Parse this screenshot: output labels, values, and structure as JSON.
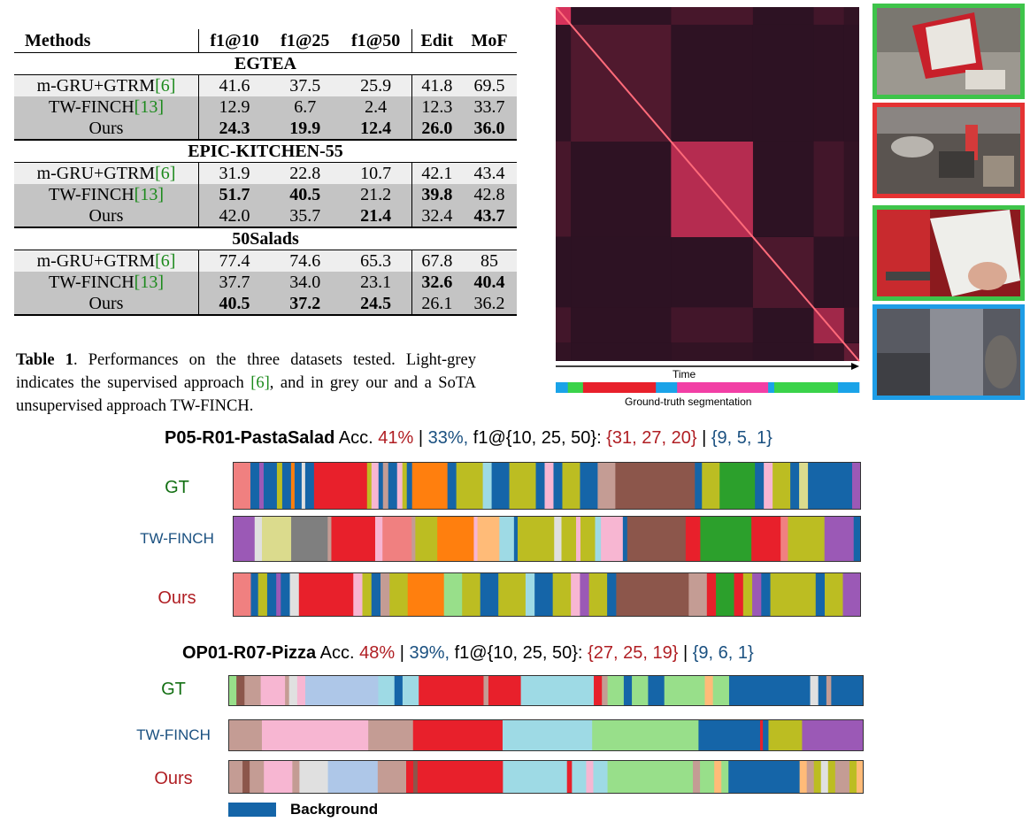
{
  "table": {
    "headers": [
      "Methods",
      "f1@10",
      "f1@25",
      "f1@50",
      "Edit",
      "MoF"
    ],
    "sections": [
      {
        "name": "EGTEA",
        "rows": [
          {
            "method": "m-GRU+GTRM",
            "ref": "[6]",
            "values": [
              "41.6",
              "37.5",
              "25.9",
              "41.8",
              "69.5"
            ],
            "bold": [
              false,
              false,
              false,
              false,
              false
            ],
            "shade": "light"
          },
          {
            "method": "TW-FINCH",
            "ref": "[13]",
            "values": [
              "12.9",
              "6.7",
              "2.4",
              "12.3",
              "33.7"
            ],
            "bold": [
              false,
              false,
              false,
              false,
              false
            ],
            "shade": "grey"
          },
          {
            "method": "Ours",
            "ref": "",
            "values": [
              "24.3",
              "19.9",
              "12.4",
              "26.0",
              "36.0"
            ],
            "bold": [
              true,
              true,
              true,
              true,
              true
            ],
            "shade": "grey"
          }
        ]
      },
      {
        "name": "EPIC-KITCHEN-55",
        "rows": [
          {
            "method": "m-GRU+GTRM",
            "ref": "[6]",
            "values": [
              "31.9",
              "22.8",
              "10.7",
              "42.1",
              "43.4"
            ],
            "bold": [
              false,
              false,
              false,
              false,
              false
            ],
            "shade": "light"
          },
          {
            "method": "TW-FINCH",
            "ref": "[13]",
            "values": [
              "51.7",
              "40.5",
              "21.2",
              "39.8",
              "42.8"
            ],
            "bold": [
              true,
              true,
              false,
              true,
              false
            ],
            "shade": "grey"
          },
          {
            "method": "Ours",
            "ref": "",
            "values": [
              "42.0",
              "35.7",
              "21.4",
              "32.4",
              "43.7"
            ],
            "bold": [
              false,
              false,
              true,
              false,
              true
            ],
            "shade": "grey"
          }
        ]
      },
      {
        "name": "50Salads",
        "rows": [
          {
            "method": "m-GRU+GTRM",
            "ref": "[6]",
            "values": [
              "77.4",
              "74.6",
              "65.3",
              "67.8",
              "85"
            ],
            "bold": [
              false,
              false,
              false,
              false,
              false
            ],
            "shade": "light"
          },
          {
            "method": "TW-FINCH",
            "ref": "[13]",
            "values": [
              "37.7",
              "34.0",
              "23.1",
              "32.6",
              "40.4"
            ],
            "bold": [
              false,
              false,
              false,
              true,
              true
            ],
            "shade": "grey"
          },
          {
            "method": "Ours",
            "ref": "",
            "values": [
              "40.5",
              "37.2",
              "24.5",
              "26.1",
              "36.2"
            ],
            "bold": [
              true,
              true,
              true,
              false,
              false
            ],
            "shade": "grey"
          }
        ]
      }
    ]
  },
  "caption": {
    "label": "Table 1",
    "text_before_ref": ". Performances on the three datasets tested. Light-grey indicates the supervised approach ",
    "ref": "[6]",
    "text_after_ref": ", and in grey our and a SoTA unsupervised approach TW-FINCH."
  },
  "heatmap": {
    "time_label": "Time",
    "gt_label": "Ground-truth segmentation",
    "blocks": [
      {
        "start": 0.0,
        "end": 0.05,
        "intensity": 0.85
      },
      {
        "start": 0.05,
        "end": 0.38,
        "intensity": 0.22
      },
      {
        "start": 0.38,
        "end": 0.65,
        "intensity": 0.7
      },
      {
        "start": 0.65,
        "end": 0.85,
        "intensity": 0.2
      },
      {
        "start": 0.85,
        "end": 0.95,
        "intensity": 0.6
      },
      {
        "start": 0.95,
        "end": 1.0,
        "intensity": 0.3
      }
    ],
    "gt_segments": [
      {
        "fraction": 0.04,
        "color": "#1aa3e8"
      },
      {
        "fraction": 0.05,
        "color": "#3ad34a"
      },
      {
        "fraction": 0.24,
        "color": "#e8202b"
      },
      {
        "fraction": 0.07,
        "color": "#1aa3e8"
      },
      {
        "fraction": 0.3,
        "color": "#f23fa5"
      },
      {
        "fraction": 0.02,
        "color": "#1aa3e8"
      },
      {
        "fraction": 0.21,
        "color": "#3ad34a"
      },
      {
        "fraction": 0.07,
        "color": "#1aa3e8"
      }
    ]
  },
  "thumbnails": [
    {
      "name": "binder",
      "border": "#3ec44a"
    },
    {
      "name": "kitchen-sink",
      "border": "#e53333"
    },
    {
      "name": "reading-paper",
      "border": "#3ec44a"
    },
    {
      "name": "blurry-scene",
      "border": "#1e9de6"
    }
  ],
  "examples": [
    {
      "name": "P05-R01-PastaSalad",
      "acc_label": "Acc.",
      "acc_ours": "41%",
      "sep": "|",
      "acc_tw": "33%,",
      "f1_label": "f1@{10, 25, 50}:",
      "f1_ours": "{31, 27, 20}",
      "sep2": "|",
      "f1_tw": "{9, 5, 1}",
      "rows": [
        {
          "label": "GT",
          "segments": [
            [
              "#f08080",
              2
            ],
            [
              "#1565a8",
              1
            ],
            [
              "#9b59b6",
              0.5
            ],
            [
              "#1565a8",
              1.5
            ],
            [
              "#bcbd22",
              0.6
            ],
            [
              "#1565a8",
              1
            ],
            [
              "#ff7f0e",
              0.4
            ],
            [
              "#1565a8",
              0.8
            ],
            [
              "#e0e0e0",
              0.4
            ],
            [
              "#1565a8",
              1
            ],
            [
              "#e8202b",
              6
            ],
            [
              "#bcbd22",
              0.5
            ],
            [
              "#f7b6d2",
              0.8
            ],
            [
              "#1565a8",
              0.5
            ],
            [
              "#c49c94",
              0.6
            ],
            [
              "#1565a8",
              1
            ],
            [
              "#f7b6d2",
              0.6
            ],
            [
              "#bcbd22",
              0.5
            ],
            [
              "#1565a8",
              0.6
            ],
            [
              "#ff7f0e",
              4
            ],
            [
              "#1565a8",
              1
            ],
            [
              "#bcbd22",
              3
            ],
            [
              "#9edae5",
              1
            ],
            [
              "#1565a8",
              2
            ],
            [
              "#bcbd22",
              3
            ],
            [
              "#1565a8",
              1
            ],
            [
              "#f7b6d2",
              1
            ],
            [
              "#1565a8",
              1
            ],
            [
              "#bcbd22",
              2
            ],
            [
              "#1565a8",
              2
            ],
            [
              "#c49c94",
              2
            ],
            [
              "#8c564b",
              9
            ],
            [
              "#1565a8",
              0.8
            ],
            [
              "#bcbd22",
              2
            ],
            [
              "#2ca02c",
              4
            ],
            [
              "#1565a8",
              1
            ],
            [
              "#f7b6d2",
              1
            ],
            [
              "#bcbd22",
              2
            ],
            [
              "#1565a8",
              1
            ],
            [
              "#dbdb8d",
              1
            ],
            [
              "#1565a8",
              5
            ],
            [
              "#9b59b6",
              1
            ]
          ]
        },
        {
          "label": "TW-FINCH",
          "segments": [
            [
              "#9b59b6",
              3
            ],
            [
              "#e0e0e0",
              1
            ],
            [
              "#dbdb8d",
              4
            ],
            [
              "#7f7f7f",
              5
            ],
            [
              "#c49c94",
              0.5
            ],
            [
              "#e8202b",
              6
            ],
            [
              "#f7b6d2",
              1
            ],
            [
              "#f08080",
              4
            ],
            [
              "#c49c94",
              0.5
            ],
            [
              "#bcbd22",
              3
            ],
            [
              "#ff7f0e",
              5
            ],
            [
              "#f7b6d2",
              0.5
            ],
            [
              "#ffbb78",
              3
            ],
            [
              "#9edae5",
              2
            ],
            [
              "#1565a8",
              0.5
            ],
            [
              "#bcbd22",
              5
            ],
            [
              "#e0e0e0",
              1
            ],
            [
              "#bcbd22",
              2
            ],
            [
              "#f7b6d2",
              0.6
            ],
            [
              "#bcbd22",
              2
            ],
            [
              "#9edae5",
              0.8
            ],
            [
              "#f7b6d2",
              3
            ],
            [
              "#1565a8",
              0.6
            ],
            [
              "#8c564b",
              8
            ],
            [
              "#e8202b",
              2
            ],
            [
              "#2ca02c",
              7
            ],
            [
              "#e8202b",
              4
            ],
            [
              "#f08080",
              1
            ],
            [
              "#bcbd22",
              5
            ],
            [
              "#9b59b6",
              4
            ],
            [
              "#1565a8",
              1
            ]
          ]
        },
        {
          "label": "Ours",
          "segments": [
            [
              "#f08080",
              2
            ],
            [
              "#1565a8",
              0.8
            ],
            [
              "#bcbd22",
              1
            ],
            [
              "#1565a8",
              1
            ],
            [
              "#9b59b6",
              0.5
            ],
            [
              "#1565a8",
              1
            ],
            [
              "#e0e0e0",
              1
            ],
            [
              "#e8202b",
              6
            ],
            [
              "#f7b6d2",
              1
            ],
            [
              "#bcbd22",
              1
            ],
            [
              "#1565a8",
              1
            ],
            [
              "#c49c94",
              1
            ],
            [
              "#bcbd22",
              2
            ],
            [
              "#ff7f0e",
              4
            ],
            [
              "#98df8a",
              2
            ],
            [
              "#bcbd22",
              2
            ],
            [
              "#1565a8",
              2
            ],
            [
              "#bcbd22",
              3
            ],
            [
              "#9edae5",
              1
            ],
            [
              "#1565a8",
              2
            ],
            [
              "#bcbd22",
              2
            ],
            [
              "#f7b6d2",
              1
            ],
            [
              "#9b59b6",
              1
            ],
            [
              "#bcbd22",
              2
            ],
            [
              "#1565a8",
              1
            ],
            [
              "#8c564b",
              8
            ],
            [
              "#c49c94",
              2
            ],
            [
              "#e8202b",
              1
            ],
            [
              "#2ca02c",
              2
            ],
            [
              "#e8202b",
              1
            ],
            [
              "#bcbd22",
              1
            ],
            [
              "#9b59b6",
              1
            ],
            [
              "#1565a8",
              1
            ],
            [
              "#bcbd22",
              5
            ],
            [
              "#1565a8",
              1
            ],
            [
              "#bcbd22",
              2
            ],
            [
              "#9b59b6",
              2
            ]
          ]
        }
      ]
    },
    {
      "name": "OP01-R07-Pizza",
      "acc_label": "Acc.",
      "acc_ours": "48%",
      "sep": "|",
      "acc_tw": "39%,",
      "f1_label": "f1@{10, 25, 50}:",
      "f1_ours": "{27, 25, 19}",
      "sep2": "|",
      "f1_tw": "{9, 6, 1}",
      "rows": [
        {
          "label": "GT",
          "segments": [
            [
              "#98df8a",
              1
            ],
            [
              "#8c564b",
              1
            ],
            [
              "#c49c94",
              2
            ],
            [
              "#f7b6d2",
              3
            ],
            [
              "#c49c94",
              0.5
            ],
            [
              "#e0e0e0",
              1
            ],
            [
              "#f7b6d2",
              1
            ],
            [
              "#aec7e8",
              9
            ],
            [
              "#9edae5",
              2
            ],
            [
              "#1565a8",
              1
            ],
            [
              "#9edae5",
              2
            ],
            [
              "#e8202b",
              8
            ],
            [
              "#c49c94",
              0.6
            ],
            [
              "#e8202b",
              4
            ],
            [
              "#9edae5",
              9
            ],
            [
              "#e8202b",
              1
            ],
            [
              "#c49c94",
              0.7
            ],
            [
              "#98df8a",
              2
            ],
            [
              "#1565a8",
              1
            ],
            [
              "#98df8a",
              2
            ],
            [
              "#1565a8",
              2
            ],
            [
              "#98df8a",
              5
            ],
            [
              "#ffbb78",
              1
            ],
            [
              "#98df8a",
              2
            ],
            [
              "#1565a8",
              10
            ],
            [
              "#e0e0e0",
              1
            ],
            [
              "#1565a8",
              1
            ],
            [
              "#c49c94",
              0.6
            ],
            [
              "#1565a8",
              4
            ]
          ]
        },
        {
          "label": "TW-FINCH",
          "segments": [
            [
              "#c49c94",
              6
            ],
            [
              "#f7b6d2",
              19
            ],
            [
              "#c49c94",
              8
            ],
            [
              "#e8202b",
              16
            ],
            [
              "#9edae5",
              16
            ],
            [
              "#98df8a",
              19
            ],
            [
              "#1565a8",
              11
            ],
            [
              "#e8202b",
              0.5
            ],
            [
              "#1565a8",
              1
            ],
            [
              "#bcbd22",
              6
            ],
            [
              "#9b59b6",
              11
            ]
          ]
        },
        {
          "label": "Ours",
          "segments": [
            [
              "#c49c94",
              2
            ],
            [
              "#8c564b",
              1
            ],
            [
              "#c49c94",
              2
            ],
            [
              "#f7b6d2",
              4
            ],
            [
              "#c49c94",
              1
            ],
            [
              "#e0e0e0",
              4
            ],
            [
              "#aec7e8",
              7
            ],
            [
              "#c49c94",
              4
            ],
            [
              "#e8202b",
              1
            ],
            [
              "#8c564b",
              0.6
            ],
            [
              "#e8202b",
              12
            ],
            [
              "#9edae5",
              9
            ],
            [
              "#e8202b",
              0.7
            ],
            [
              "#9edae5",
              2
            ],
            [
              "#f7b6d2",
              1
            ],
            [
              "#9edae5",
              2
            ],
            [
              "#98df8a",
              12
            ],
            [
              "#c49c94",
              1
            ],
            [
              "#98df8a",
              2
            ],
            [
              "#ffbb78",
              1
            ],
            [
              "#98df8a",
              1
            ],
            [
              "#1565a8",
              10
            ],
            [
              "#ffbb78",
              1
            ],
            [
              "#c49c94",
              1
            ],
            [
              "#bcbd22",
              1
            ],
            [
              "#e0e0e0",
              1
            ],
            [
              "#bcbd22",
              1
            ],
            [
              "#c49c94",
              2
            ],
            [
              "#bcbd22",
              1
            ],
            [
              "#ffbb78",
              1
            ]
          ]
        }
      ]
    }
  ],
  "legend": {
    "label": "Background",
    "color": "#1565a8"
  }
}
